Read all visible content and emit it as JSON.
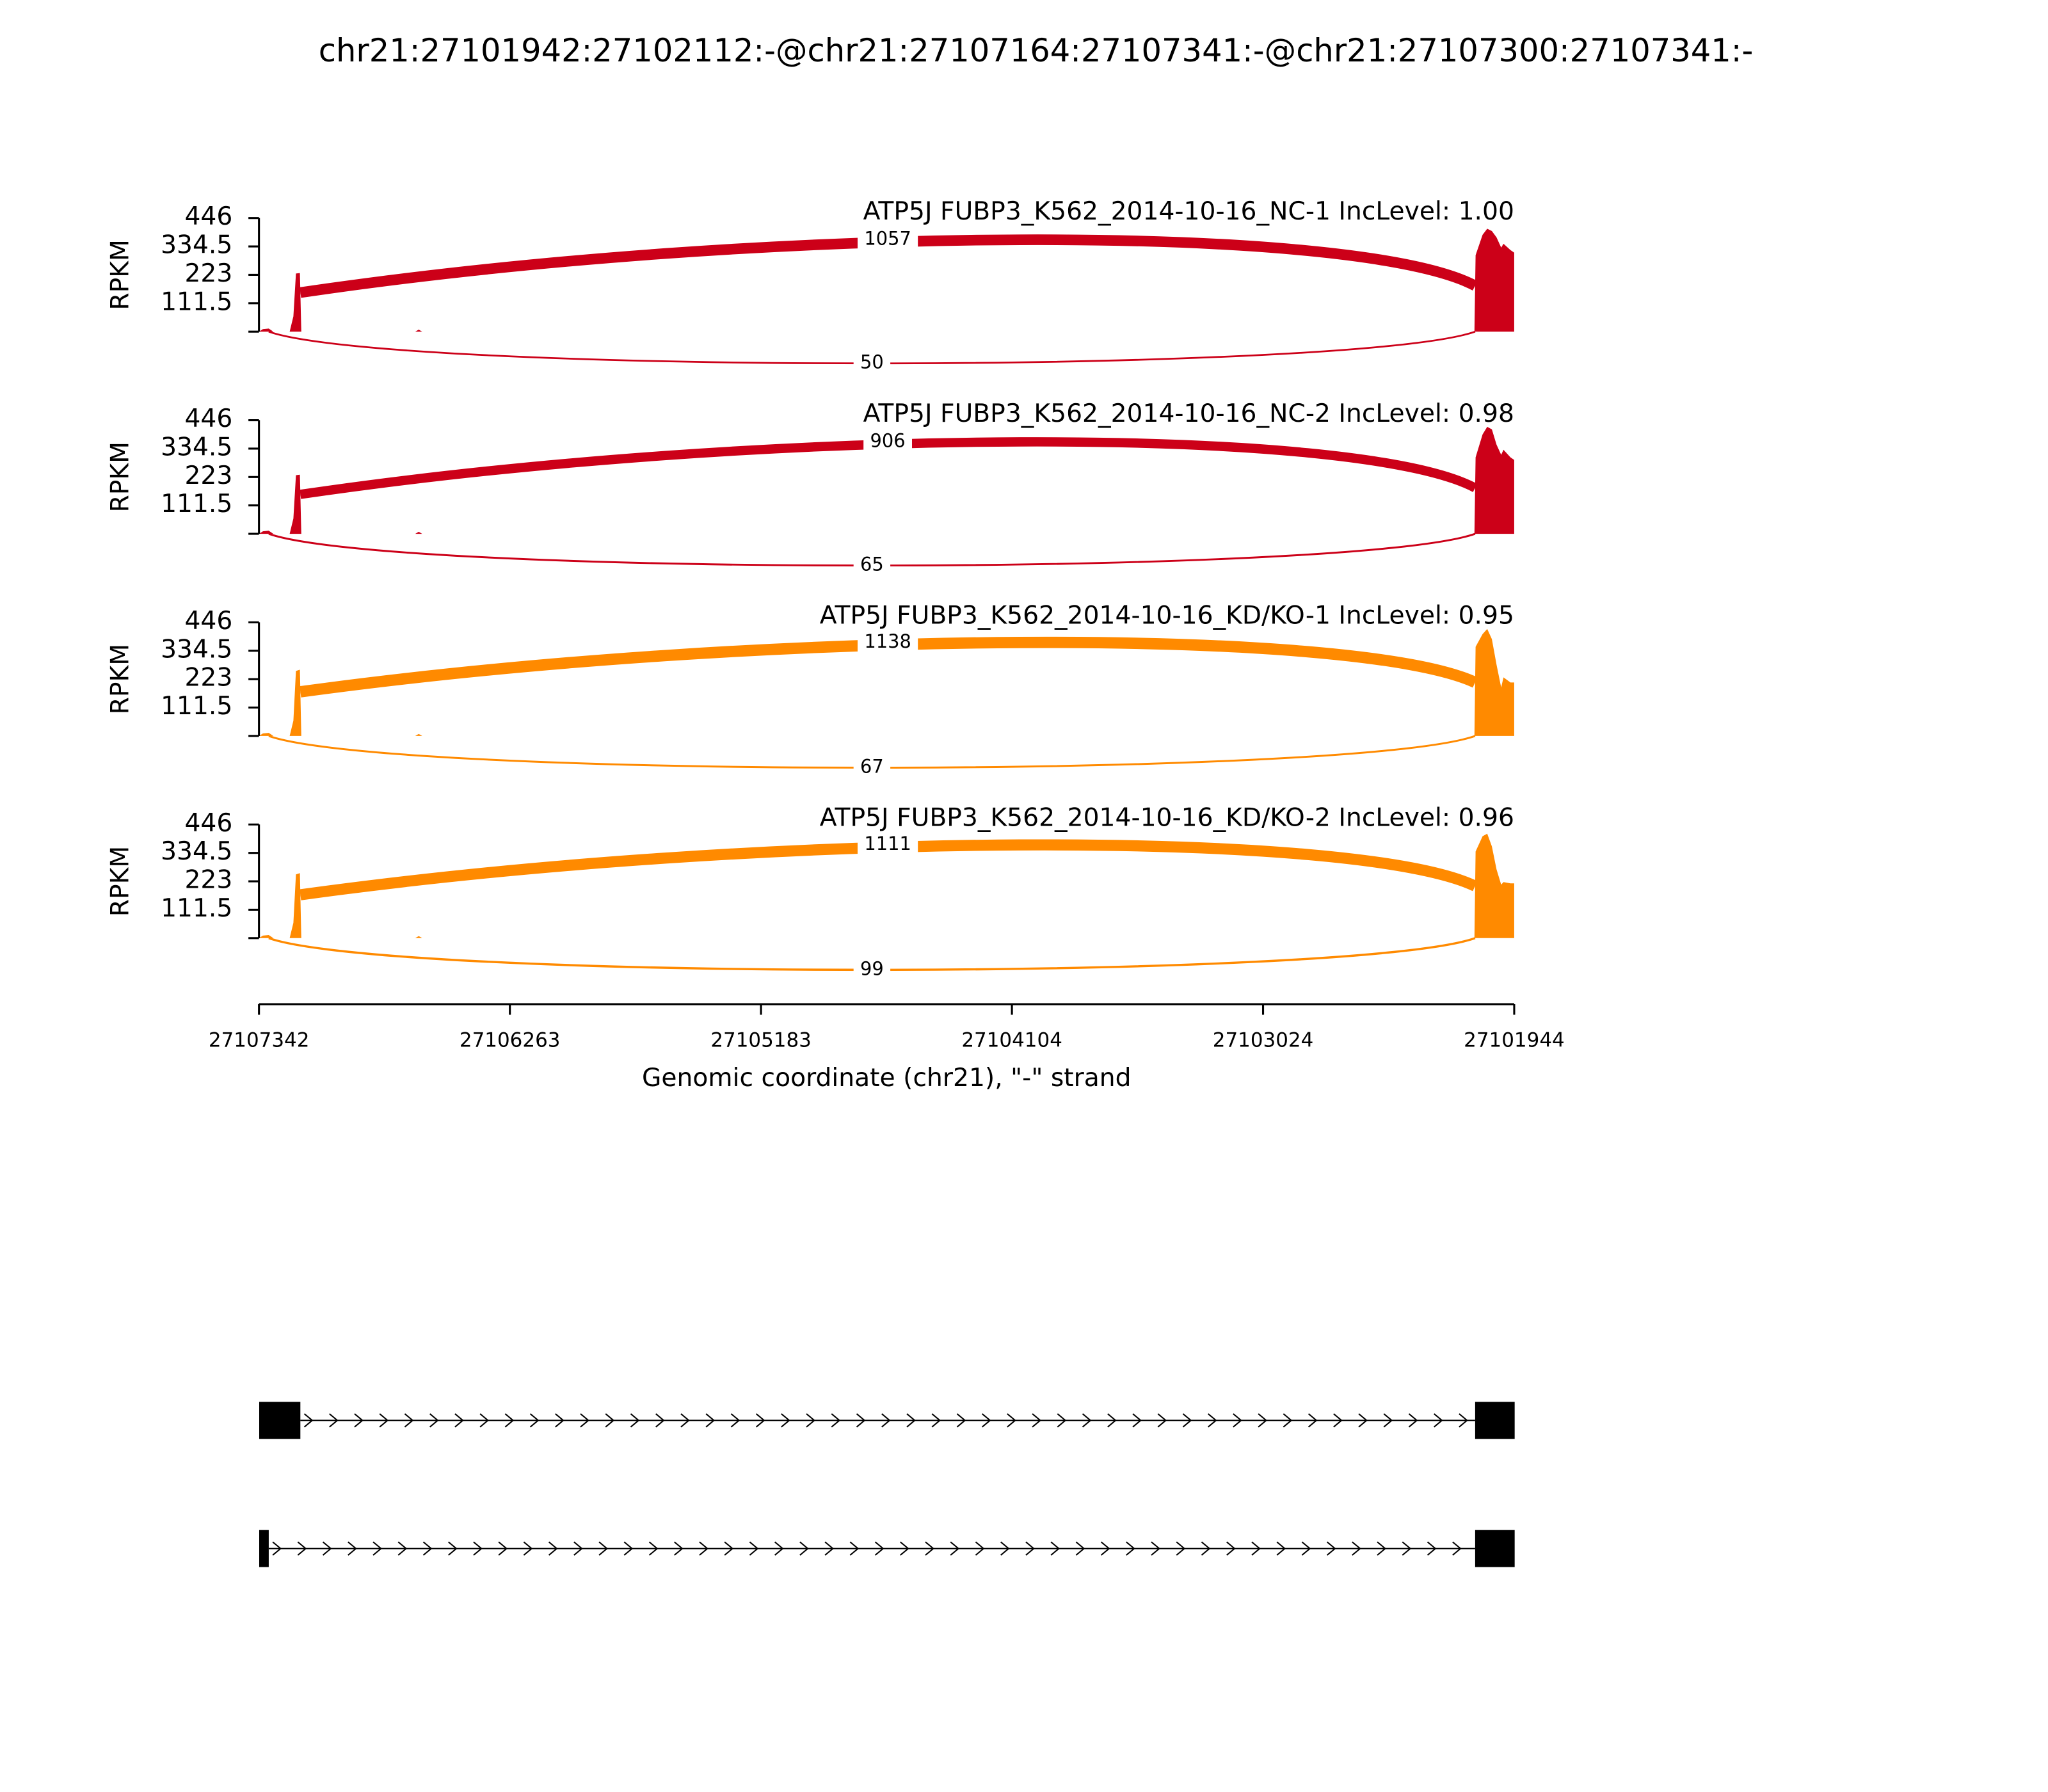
{
  "chart_data": {
    "type": "sashimi",
    "title": "chr21:27101942:27102112:-@chr21:27107164:27107341:-@chr21:27107300:27107341:-",
    "xlabel": "Genomic coordinate (chr21), \"-\" strand",
    "ylabel": "RPKM",
    "xlim": [
      27107342,
      27101944
    ],
    "xticks": [
      27107342,
      27106263,
      27105183,
      27104104,
      27103024,
      27101944
    ],
    "x": [
      27107342,
      27107325,
      27107300,
      27107280,
      27107210,
      27107194,
      27107183,
      27107166,
      27107160,
      27106670,
      27106655,
      27106640,
      27102115,
      27102110,
      27102080,
      27102060,
      27102040,
      27102020,
      27102000,
      27101990,
      27101960,
      27101944
    ],
    "panels": [
      {
        "title": "ATP5J FUBP3_K562_2014-10-16_NC-1 IncLevel: 1.00",
        "color": "#cc0018",
        "ylim": [
          0,
          446
        ],
        "yticks": [
          111.5,
          223,
          334.5,
          446
        ],
        "values": [
          0,
          10,
          12,
          0,
          0,
          60,
          228,
          230,
          0,
          0,
          8,
          0,
          0,
          300,
          380,
          404,
          395,
          370,
          330,
          345,
          320,
          310
        ],
        "junctions": [
          {
            "start": 27107164,
            "end": 27102112,
            "value": 1057
          },
          {
            "start": 27107300,
            "end": 27102112,
            "value": 50
          }
        ]
      },
      {
        "title": "ATP5J FUBP3_K562_2014-10-16_NC-2 IncLevel: 0.98",
        "color": "#cc0018",
        "ylim": [
          0,
          446
        ],
        "yticks": [
          111.5,
          223,
          334.5,
          446
        ],
        "values": [
          0,
          10,
          12,
          0,
          0,
          60,
          230,
          232,
          0,
          0,
          8,
          0,
          0,
          300,
          390,
          420,
          410,
          350,
          310,
          330,
          300,
          290
        ],
        "junctions": [
          {
            "start": 27107164,
            "end": 27102112,
            "value": 906
          },
          {
            "start": 27107300,
            "end": 27102112,
            "value": 65
          }
        ]
      },
      {
        "title": "ATP5J FUBP3_K562_2014-10-16_KD/KO-1 IncLevel: 0.95",
        "color": "#ff8a00",
        "ylim": [
          0,
          446
        ],
        "yticks": [
          111.5,
          223,
          334.5,
          446
        ],
        "values": [
          0,
          10,
          12,
          0,
          0,
          60,
          255,
          260,
          0,
          0,
          8,
          0,
          0,
          350,
          400,
          420,
          380,
          280,
          190,
          230,
          210,
          210
        ],
        "junctions": [
          {
            "start": 27107164,
            "end": 27102112,
            "value": 1138
          },
          {
            "start": 27107300,
            "end": 27102112,
            "value": 67
          }
        ]
      },
      {
        "title": "ATP5J FUBP3_K562_2014-10-16_KD/KO-2 IncLevel: 0.96",
        "color": "#ff8a00",
        "ylim": [
          0,
          446
        ],
        "yticks": [
          111.5,
          223,
          334.5,
          446
        ],
        "values": [
          0,
          10,
          12,
          0,
          0,
          60,
          250,
          255,
          0,
          0,
          8,
          0,
          0,
          340,
          400,
          410,
          360,
          270,
          210,
          220,
          215,
          215
        ],
        "junctions": [
          {
            "start": 27107164,
            "end": 27102112,
            "value": 1111
          },
          {
            "start": 27107300,
            "end": 27102112,
            "value": 99
          }
        ]
      }
    ],
    "transcripts": [
      {
        "exons": [
          [
            27107341,
            27107164
          ],
          [
            27102112,
            27101942
          ]
        ]
      },
      {
        "exons": [
          [
            27107341,
            27107300
          ],
          [
            27102112,
            27101942
          ]
        ]
      }
    ]
  }
}
